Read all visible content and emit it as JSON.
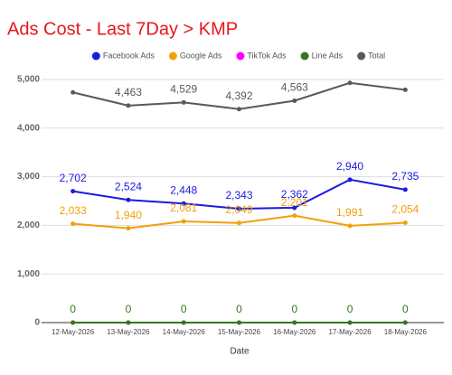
{
  "chart_data": {
    "type": "line",
    "title": "Ads Cost - Last 7Day > KMP",
    "x_label": "Date",
    "categories": [
      "12-May-2026",
      "13-May-2026",
      "14-May-2026",
      "15-May-2026",
      "16-May-2026",
      "17-May-2026",
      "18-May-2026"
    ],
    "series": [
      {
        "name": "Facebook Ads",
        "color": "#1a1ae0",
        "values": [
          2702,
          2524,
          2448,
          2343,
          2362,
          2940,
          2735
        ],
        "value_labels": [
          "2,702",
          "2,524",
          "2,448",
          "2,343",
          "2,362",
          "2,940",
          "2,735"
        ]
      },
      {
        "name": "Google Ads",
        "color": "#f2a007",
        "values": [
          2033,
          1940,
          2081,
          2049,
          2201,
          1991,
          2054
        ],
        "value_labels": [
          "2,033",
          "1,940",
          "2,081",
          "2,049",
          "2,201",
          "1,991",
          "2,054"
        ]
      },
      {
        "name": "TikTok Ads",
        "color": "#ff00ff",
        "values": [
          0,
          0,
          0,
          0,
          0,
          0,
          0
        ]
      },
      {
        "name": "Line Ads",
        "color": "#38761d",
        "values": [
          0,
          0,
          0,
          0,
          0,
          0,
          0
        ],
        "show_labels": true
      },
      {
        "name": "Total",
        "color": "#595959",
        "values": [
          4735,
          4463,
          4529,
          4392,
          4563,
          4931,
          4789
        ],
        "value_labels": [
          null,
          "4,463",
          "4,529",
          "4,392",
          "4,563",
          null,
          null
        ]
      }
    ],
    "ylim": [
      0,
      5000
    ],
    "yticks": [
      0,
      {
        "value": 1000,
        "label": "1,000"
      },
      {
        "value": 2000,
        "label": "2,000"
      },
      {
        "value": 3000,
        "label": "3,000"
      },
      {
        "value": 4000,
        "label": "4,000"
      },
      {
        "value": 5000,
        "label": "5,000"
      }
    ],
    "grid": true,
    "legend": "top"
  }
}
